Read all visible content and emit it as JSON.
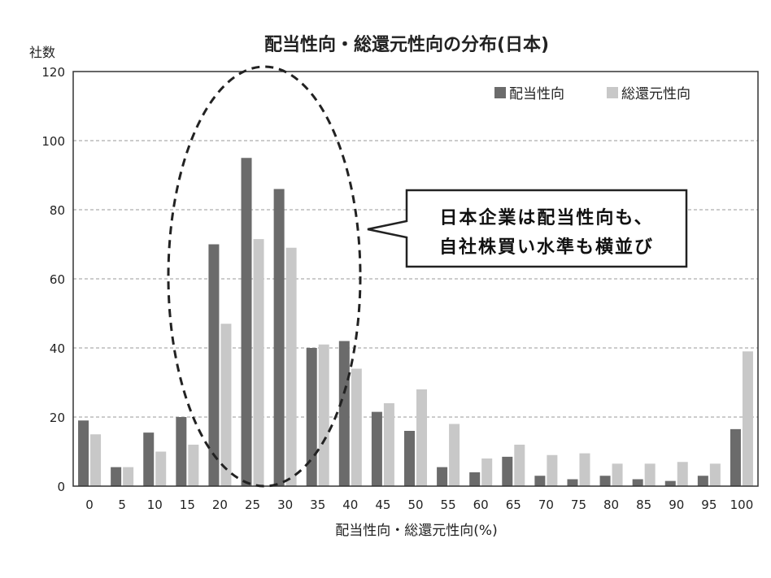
{
  "chart_data": {
    "type": "bar",
    "title": "配当性向・総還元性向の分布(日本)",
    "ylabel": "社数",
    "xlabel": "配当性向・総還元性向(%)",
    "ylim": [
      0,
      120
    ],
    "yticks": [
      0,
      20,
      40,
      60,
      80,
      100,
      120
    ],
    "grid": true,
    "legend": "top-right",
    "categories": [
      "0",
      "5",
      "10",
      "15",
      "20",
      "25",
      "30",
      "35",
      "40",
      "45",
      "50",
      "55",
      "60",
      "65",
      "70",
      "75",
      "80",
      "85",
      "90",
      "95",
      "100"
    ],
    "series": [
      {
        "name": "配当性向",
        "color": "#6b6b6b",
        "values": [
          19,
          5.5,
          15.5,
          20,
          70,
          95,
          86,
          40,
          42,
          21.5,
          16,
          5.5,
          4,
          8.5,
          3,
          2,
          3,
          2,
          1.5,
          3,
          16.5
        ]
      },
      {
        "name": "総還元性向",
        "color": "#c8c8c8",
        "values": [
          15,
          5.5,
          10,
          12,
          47,
          71.5,
          69,
          41,
          34,
          24,
          28,
          18,
          8,
          12,
          9,
          9.5,
          6.5,
          6.5,
          7,
          6.5,
          39
        ]
      }
    ],
    "annotation": {
      "lines": [
        "日本企業は配当性向も、",
        "自社株買い水準も横並び"
      ]
    }
  }
}
